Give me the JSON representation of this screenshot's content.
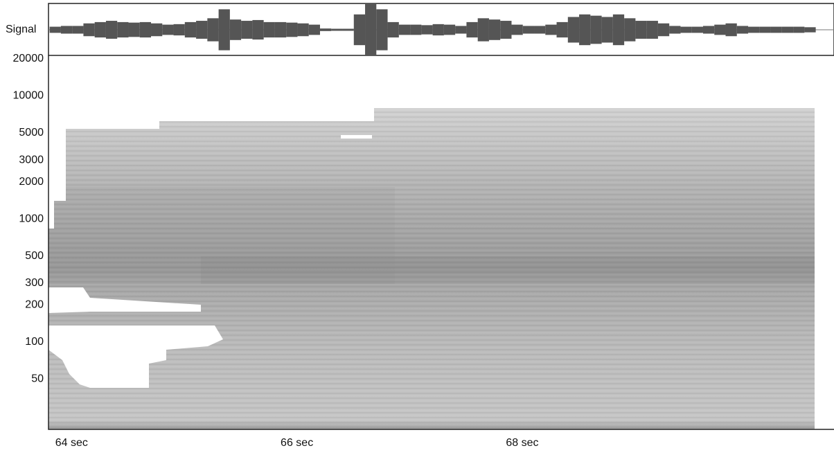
{
  "chart_data": {
    "type": "spectrogram",
    "x": [
      64.0,
      64.1,
      64.2,
      64.3,
      64.4,
      64.5,
      64.6,
      64.7,
      64.8,
      64.9,
      65.0,
      65.1,
      65.2,
      65.3,
      65.4,
      65.5,
      65.6,
      65.7,
      65.8,
      65.9,
      66.0,
      66.1,
      66.2,
      66.3,
      66.4,
      66.5,
      66.6,
      66.7,
      66.8,
      66.9,
      67.0,
      67.1,
      67.2,
      67.3,
      67.4,
      67.5,
      67.6,
      67.7,
      67.8,
      67.9,
      68.0,
      68.1,
      68.2,
      68.3,
      68.4,
      68.5,
      68.6,
      68.7,
      68.8,
      68.9,
      69.0,
      69.1,
      69.2,
      69.3,
      69.4,
      69.5,
      69.6,
      69.7,
      69.8,
      69.9,
      70.0,
      70.1,
      70.2,
      70.3,
      70.4,
      70.5,
      70.6,
      70.7
    ],
    "series": [
      {
        "name": "Signal",
        "color": "#555555",
        "values": [
          0.12,
          0.15,
          0.15,
          0.25,
          0.3,
          0.35,
          0.3,
          0.28,
          0.3,
          0.25,
          0.2,
          0.22,
          0.3,
          0.35,
          0.45,
          0.8,
          0.4,
          0.35,
          0.38,
          0.3,
          0.3,
          0.28,
          0.25,
          0.2,
          0.05,
          0.04,
          0.04,
          0.6,
          1.0,
          0.8,
          0.3,
          0.2,
          0.2,
          0.18,
          0.22,
          0.2,
          0.15,
          0.3,
          0.45,
          0.4,
          0.35,
          0.2,
          0.15,
          0.15,
          0.2,
          0.3,
          0.5,
          0.6,
          0.55,
          0.5,
          0.6,
          0.45,
          0.35,
          0.35,
          0.25,
          0.15,
          0.12,
          0.12,
          0.15,
          0.2,
          0.25,
          0.15,
          0.12,
          0.12,
          0.12,
          0.12,
          0.12,
          0.1
        ]
      }
    ],
    "xlim": [
      63.94,
      70.74
    ],
    "xticks": [
      {
        "value": 64,
        "label": "64  sec"
      },
      {
        "value": 66,
        "label": "66  sec"
      },
      {
        "value": 68,
        "label": "68  sec"
      }
    ],
    "ylim": [
      19.5,
      21300
    ],
    "log_y": true,
    "yticks": [
      20000,
      10000,
      5000,
      3000,
      2000,
      1000,
      500,
      300,
      200,
      100,
      50
    ]
  }
}
